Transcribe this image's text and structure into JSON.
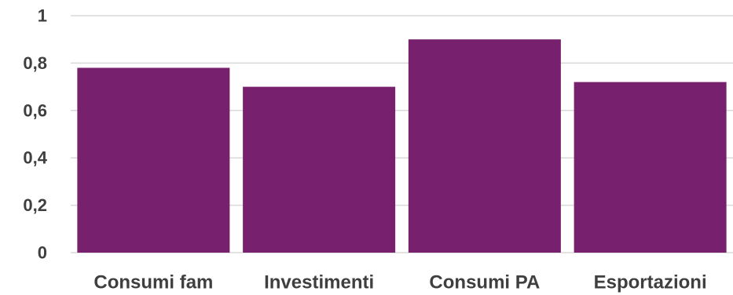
{
  "chart_data": {
    "type": "bar",
    "categories": [
      "Consumi fam",
      "Investimenti",
      "Consumi PA",
      "Esportazioni"
    ],
    "values": [
      0.78,
      0.7,
      0.9,
      0.72
    ],
    "ylim": [
      0,
      1
    ],
    "y_ticks": [
      "0",
      "0,2",
      "0,4",
      "0,6",
      "0,8",
      "1"
    ],
    "grid": true,
    "legend": "none",
    "title": "",
    "xlabel": "",
    "ylabel": "",
    "bar_color": "#77206d",
    "gridline_color": "#d9d9d9",
    "text_color": "#3f3f3f"
  }
}
